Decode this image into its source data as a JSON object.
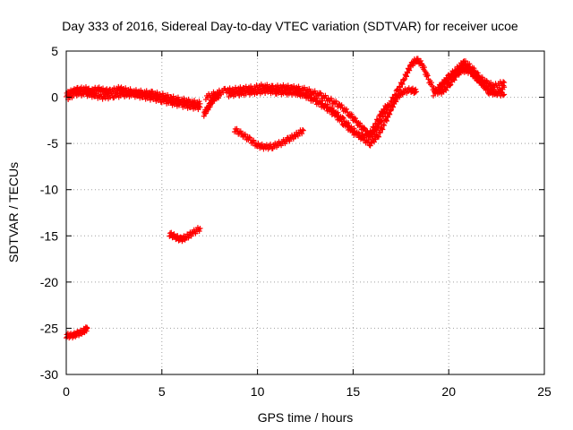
{
  "chart_data": {
    "type": "scatter",
    "title": "Day 333 of 2016, Sidereal Day-to-day VTEC variation (SDTVAR) for receiver ucoe",
    "xlabel": "GPS time / hours",
    "ylabel": "SDTVAR / TECUs",
    "xlim": [
      0,
      25
    ],
    "ylim": [
      -30,
      5
    ],
    "xticks": [
      0,
      5,
      10,
      15,
      20,
      25
    ],
    "yticks": [
      5,
      0,
      -5,
      -10,
      -15,
      -20,
      -25,
      -30
    ],
    "xtick_labels": [
      "0",
      "5",
      "10",
      "15",
      "20",
      "25"
    ],
    "ytick_labels": [
      "5",
      "0",
      "-5",
      "-10",
      "-15",
      "-20",
      "-25",
      "-30"
    ],
    "grid": true,
    "grid_style": "dotted",
    "series_color": "#ff0000",
    "series": [
      {
        "name": "arc-main-early",
        "points": [
          [
            0.0,
            0.3
          ],
          [
            0.3,
            0.6
          ],
          [
            0.6,
            0.8
          ],
          [
            1.0,
            0.9
          ],
          [
            1.3,
            0.6
          ],
          [
            1.6,
            0.9
          ],
          [
            2.0,
            0.7
          ],
          [
            2.3,
            0.6
          ],
          [
            2.7,
            0.9
          ],
          [
            3.0,
            0.8
          ],
          [
            3.5,
            0.6
          ],
          [
            4.0,
            0.5
          ],
          [
            4.5,
            0.4
          ],
          [
            5.0,
            0.2
          ],
          [
            5.5,
            -0.1
          ],
          [
            6.0,
            -0.3
          ],
          [
            6.5,
            -0.5
          ],
          [
            7.0,
            -0.7
          ]
        ]
      },
      {
        "name": "arc-main-early-b",
        "points": [
          [
            0.1,
            0.0
          ],
          [
            0.5,
            0.4
          ],
          [
            1.0,
            0.4
          ],
          [
            1.5,
            0.2
          ],
          [
            2.0,
            0.0
          ],
          [
            2.5,
            0.2
          ],
          [
            3.0,
            0.3
          ],
          [
            3.5,
            0.3
          ],
          [
            4.0,
            0.1
          ],
          [
            4.5,
            -0.1
          ],
          [
            5.0,
            -0.3
          ],
          [
            5.5,
            -0.6
          ],
          [
            6.0,
            -0.8
          ],
          [
            6.5,
            -1.0
          ],
          [
            7.0,
            -1.1
          ]
        ]
      },
      {
        "name": "arc-dip-7h",
        "points": [
          [
            7.2,
            -1.8
          ],
          [
            7.4,
            -1.2
          ],
          [
            7.6,
            -0.5
          ],
          [
            7.8,
            0.0
          ],
          [
            8.0,
            0.2
          ]
        ]
      },
      {
        "name": "arc-main-mid",
        "points": [
          [
            7.3,
            0.0
          ],
          [
            7.8,
            0.4
          ],
          [
            8.3,
            0.7
          ],
          [
            8.8,
            0.8
          ],
          [
            9.3,
            0.9
          ],
          [
            9.8,
            1.0
          ],
          [
            10.3,
            1.2
          ],
          [
            10.8,
            1.0
          ],
          [
            11.3,
            1.1
          ],
          [
            11.8,
            1.0
          ],
          [
            12.3,
            0.9
          ],
          [
            12.8,
            0.6
          ],
          [
            13.3,
            0.2
          ],
          [
            13.8,
            -0.3
          ],
          [
            14.3,
            -0.9
          ],
          [
            14.8,
            -1.8
          ],
          [
            15.2,
            -2.7
          ],
          [
            15.6,
            -3.6
          ],
          [
            15.9,
            -4.2
          ],
          [
            16.2,
            -3.6
          ],
          [
            16.5,
            -2.3
          ],
          [
            16.9,
            -0.8
          ],
          [
            17.3,
            0.6
          ],
          [
            17.7,
            2.1
          ],
          [
            18.0,
            3.4
          ],
          [
            18.3,
            4.1
          ],
          [
            18.6,
            3.6
          ],
          [
            18.9,
            2.1
          ],
          [
            19.3,
            0.6
          ],
          [
            19.7,
            0.6
          ],
          [
            20.1,
            1.6
          ],
          [
            20.5,
            2.6
          ],
          [
            20.9,
            3.3
          ],
          [
            21.3,
            2.6
          ],
          [
            21.7,
            1.6
          ],
          [
            22.1,
            0.6
          ],
          [
            22.5,
            0.4
          ],
          [
            22.9,
            1.1
          ]
        ]
      },
      {
        "name": "arc-main-mid-b",
        "points": [
          [
            8.5,
            0.3
          ],
          [
            9.0,
            0.4
          ],
          [
            9.5,
            0.5
          ],
          [
            10.0,
            0.6
          ],
          [
            10.5,
            0.7
          ],
          [
            11.0,
            0.6
          ],
          [
            11.5,
            0.5
          ],
          [
            12.0,
            0.5
          ],
          [
            12.5,
            0.3
          ],
          [
            13.0,
            -0.2
          ],
          [
            13.5,
            -0.8
          ],
          [
            14.0,
            -1.5
          ],
          [
            14.5,
            -2.5
          ],
          [
            15.0,
            -3.5
          ],
          [
            15.5,
            -4.5
          ],
          [
            15.9,
            -5.0
          ],
          [
            16.3,
            -4.2
          ],
          [
            16.7,
            -2.6
          ],
          [
            17.0,
            -1.2
          ],
          [
            17.3,
            0.0
          ],
          [
            17.6,
            0.6
          ],
          [
            18.0,
            0.8
          ],
          [
            18.3,
            0.6
          ]
        ]
      },
      {
        "name": "arc-main-mid-c",
        "points": [
          [
            12.0,
            0.5
          ],
          [
            12.5,
            0.2
          ],
          [
            13.0,
            -0.4
          ],
          [
            13.5,
            -1.0
          ],
          [
            14.0,
            -1.8
          ],
          [
            14.5,
            -2.8
          ],
          [
            15.0,
            -3.8
          ],
          [
            15.5,
            -4.3
          ],
          [
            16.0,
            -3.6
          ],
          [
            16.4,
            -2.0
          ],
          [
            16.8,
            -0.8
          ]
        ]
      },
      {
        "name": "arc-late-c",
        "points": [
          [
            19.5,
            1.0
          ],
          [
            19.9,
            1.8
          ],
          [
            20.3,
            2.5
          ],
          [
            20.7,
            3.0
          ],
          [
            21.1,
            2.8
          ],
          [
            21.5,
            2.0
          ],
          [
            21.9,
            1.1
          ],
          [
            22.3,
            0.6
          ],
          [
            22.9,
            0.3
          ]
        ]
      },
      {
        "name": "arc-late-d",
        "points": [
          [
            19.2,
            0.4
          ],
          [
            19.6,
            1.3
          ],
          [
            20.0,
            2.2
          ],
          [
            20.4,
            3.0
          ],
          [
            20.8,
            3.8
          ],
          [
            21.2,
            3.2
          ],
          [
            21.6,
            2.2
          ],
          [
            22.0,
            1.5
          ],
          [
            22.4,
            1.2
          ],
          [
            22.9,
            1.6
          ]
        ]
      },
      {
        "name": "arc-bowl-10h",
        "points": [
          [
            8.8,
            -3.5
          ],
          [
            9.2,
            -4.0
          ],
          [
            9.6,
            -4.6
          ],
          [
            10.0,
            -5.2
          ],
          [
            10.4,
            -5.4
          ],
          [
            10.8,
            -5.3
          ],
          [
            11.2,
            -5.0
          ],
          [
            11.6,
            -4.6
          ],
          [
            12.0,
            -4.1
          ],
          [
            12.4,
            -3.6
          ]
        ]
      },
      {
        "name": "arc-low-6h",
        "points": [
          [
            5.4,
            -14.8
          ],
          [
            5.7,
            -15.1
          ],
          [
            6.0,
            -15.4
          ],
          [
            6.3,
            -15.1
          ],
          [
            6.6,
            -14.7
          ],
          [
            7.0,
            -14.2
          ]
        ]
      },
      {
        "name": "arc-bottom-0h",
        "points": [
          [
            0.0,
            -25.8
          ],
          [
            0.3,
            -25.8
          ],
          [
            0.6,
            -25.6
          ],
          [
            0.9,
            -25.3
          ],
          [
            1.1,
            -25.0
          ]
        ]
      }
    ]
  }
}
